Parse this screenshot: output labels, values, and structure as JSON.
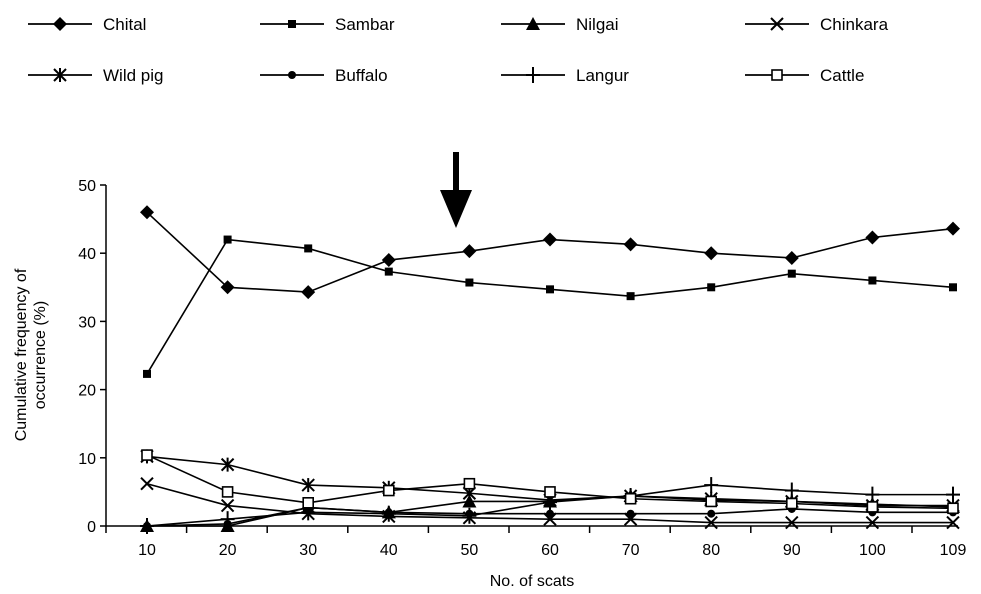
{
  "chart_data": {
    "type": "line",
    "title": "",
    "xlabel": "No. of scats",
    "ylabel": "Cumulative frequency of occurrence (%)",
    "ylabel_lines": [
      "Cumulative frequency of",
      "occurrence (%)"
    ],
    "categories": [
      "10",
      "20",
      "30",
      "40",
      "50",
      "60",
      "70",
      "80",
      "90",
      "100",
      "109"
    ],
    "ylim": [
      0,
      50
    ],
    "yticks": [
      "0",
      "10",
      "20",
      "30",
      "40",
      "50"
    ],
    "grid": false,
    "legend_position": "top",
    "annotation": "downward arrow above x = 50",
    "series": [
      {
        "name": "Chital",
        "marker": "diamond",
        "values": [
          46,
          35,
          34.3,
          39,
          40.3,
          42,
          41.3,
          40,
          39.3,
          42.3,
          43.6
        ]
      },
      {
        "name": "Sambar",
        "marker": "square-filled",
        "values": [
          22.3,
          42,
          40.7,
          37.3,
          35.7,
          34.7,
          33.7,
          35,
          37,
          36,
          35
        ]
      },
      {
        "name": "Nilgai",
        "marker": "triangle",
        "values": [
          0,
          0,
          2.7,
          2,
          3.6,
          3.6,
          4.4,
          3.8,
          3.6,
          3.2,
          2.8
        ]
      },
      {
        "name": "Chinkara",
        "marker": "x",
        "values": [
          6.2,
          3,
          1.8,
          1.4,
          1.2,
          1,
          1,
          0.5,
          0.5,
          0.5,
          0.5
        ]
      },
      {
        "name": "Wild pig",
        "marker": "asterisk",
        "values": [
          10.2,
          9,
          6,
          5.6,
          4.8,
          3.8,
          4.4,
          4,
          3.6,
          3,
          3
        ]
      },
      {
        "name": "Buffalo",
        "marker": "circle",
        "values": [
          0,
          0.3,
          2.7,
          2,
          1.8,
          1.8,
          1.8,
          1.8,
          2.5,
          2,
          2
        ]
      },
      {
        "name": "Langur",
        "marker": "plus",
        "values": [
          0,
          1,
          2,
          1.8,
          1.5,
          3.5,
          4.4,
          6,
          5.2,
          4.6,
          4.6
        ]
      },
      {
        "name": "Cattle",
        "marker": "square-open",
        "values": [
          10.4,
          5,
          3.4,
          5.2,
          6.2,
          5,
          4,
          3.6,
          3.3,
          2.8,
          2.6
        ]
      }
    ]
  }
}
